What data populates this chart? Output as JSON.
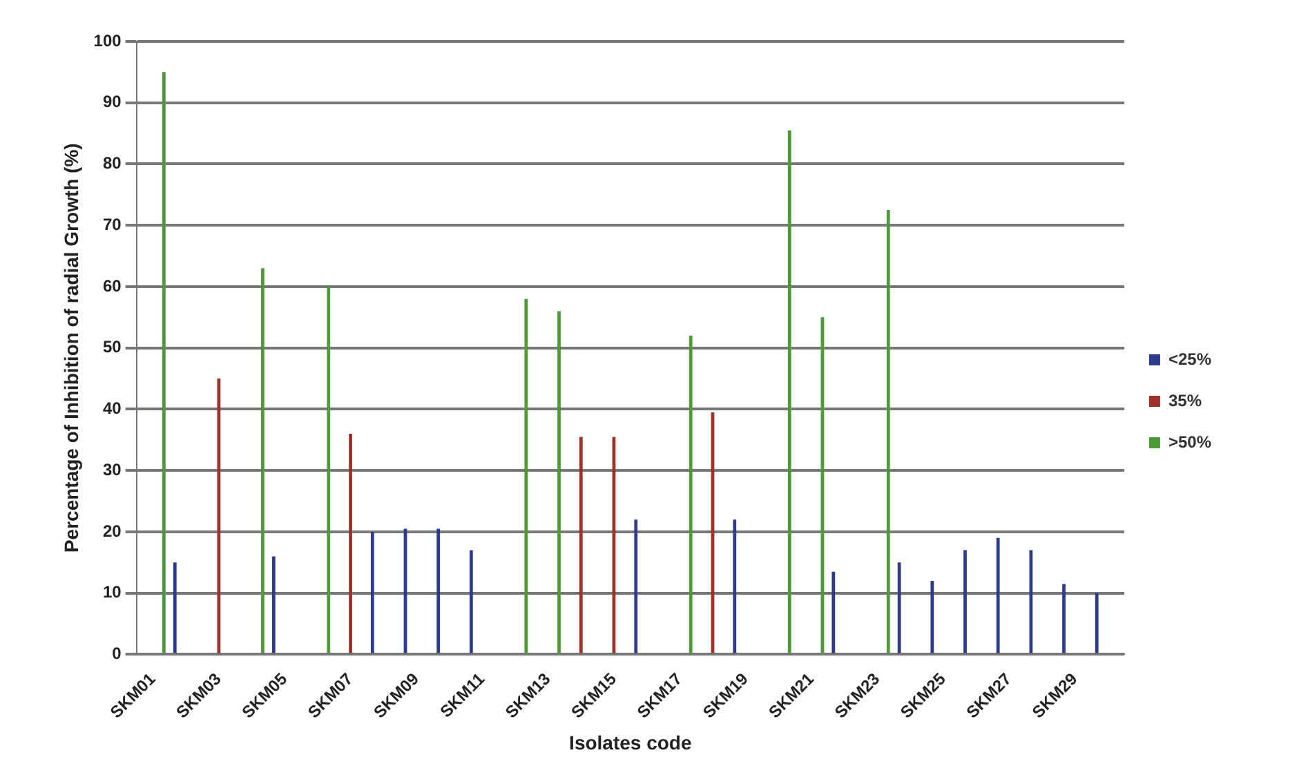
{
  "chart_data": {
    "type": "bar",
    "xlabel": "Isolates code",
    "ylabel": "Percentage of Inhibition of radial Growth (%)",
    "categories": [
      "SKM01",
      null,
      "SKM03",
      null,
      "SKM05",
      null,
      "SKM07",
      null,
      "SKM09",
      null,
      "SKM11",
      null,
      "SKM13",
      null,
      "SKM15",
      null,
      "SKM17",
      null,
      "SKM19",
      null,
      "SKM21",
      null,
      "SKM23",
      null,
      "SKM25",
      null,
      "SKM27",
      null,
      "SKM29",
      null
    ],
    "series": [
      {
        "name": "<25%",
        "color": "#2e3a8c",
        "values": [
          null,
          15,
          null,
          null,
          16,
          null,
          null,
          20,
          20.5,
          20.5,
          17,
          null,
          null,
          null,
          null,
          22,
          null,
          null,
          22,
          null,
          null,
          13.5,
          null,
          15,
          12,
          17,
          19,
          17,
          11.5,
          10
        ]
      },
      {
        "name": "35%",
        "color": "#a0302a",
        "values": [
          null,
          null,
          45,
          null,
          null,
          null,
          36,
          null,
          null,
          null,
          null,
          null,
          null,
          35.5,
          35.5,
          null,
          null,
          39.5,
          null,
          null,
          null,
          null,
          null,
          null,
          null,
          null,
          null,
          null,
          null,
          null
        ]
      },
      {
        "name": ">50%",
        "color": "#4e9a3a",
        "values": [
          95,
          null,
          null,
          63,
          null,
          60,
          null,
          null,
          null,
          null,
          null,
          58,
          56,
          null,
          null,
          null,
          52,
          null,
          null,
          85.5,
          55,
          null,
          72.5,
          null,
          null,
          null,
          null,
          null,
          null,
          null
        ]
      }
    ],
    "ylim": [
      0,
      100
    ],
    "yticks": [
      0,
      10,
      20,
      30,
      40,
      50,
      60,
      70,
      80,
      90,
      100
    ],
    "grid": "y",
    "legend": "right"
  }
}
